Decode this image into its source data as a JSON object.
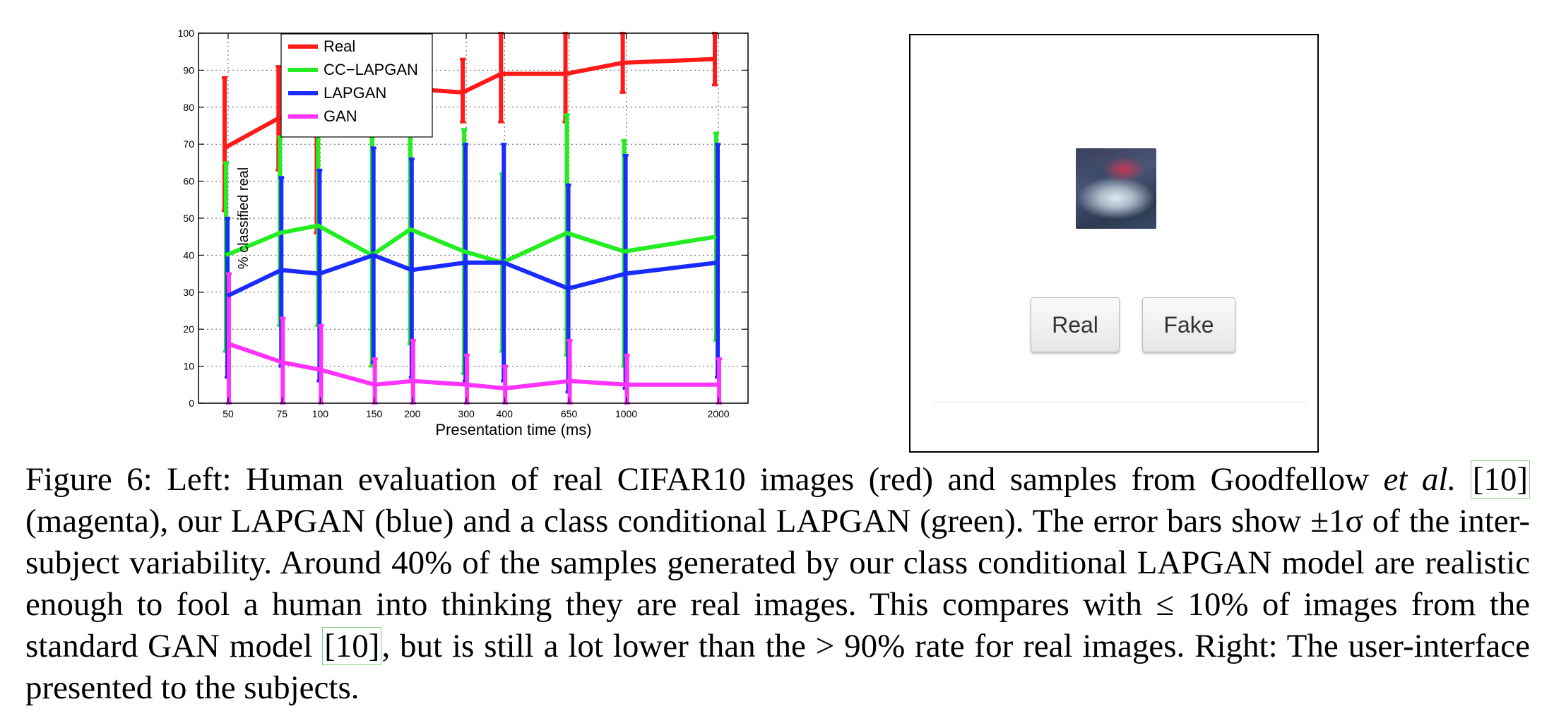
{
  "chart_data": {
    "type": "line",
    "xlabel": "Presentation time (ms)",
    "ylabel": "% classified real",
    "ylim": [
      0,
      100
    ],
    "yticks": [
      0,
      10,
      20,
      30,
      40,
      50,
      60,
      70,
      80,
      90,
      100
    ],
    "x_scale": "log",
    "x": [
      50,
      75,
      100,
      150,
      200,
      300,
      400,
      650,
      1000,
      2000
    ],
    "grid": true,
    "legend_position": "top-left",
    "series": [
      {
        "name": "Real",
        "color": "#ff1a1a",
        "values": [
          69,
          77,
          79,
          87,
          85,
          84,
          89,
          89,
          92,
          93
        ],
        "err_low": [
          52,
          63,
          46,
          75,
          73,
          76,
          76,
          76,
          84,
          86
        ],
        "err_high": [
          88,
          91,
          99,
          99,
          97,
          93,
          100,
          100,
          100,
          100
        ]
      },
      {
        "name": "CC−LAPGAN",
        "color": "#22ee22",
        "values": [
          40,
          46,
          48,
          40,
          47,
          41,
          38,
          46,
          41,
          45
        ],
        "err_low": [
          14,
          21,
          21,
          10,
          16,
          8,
          14,
          13,
          10,
          17
        ],
        "err_high": [
          65,
          72,
          75,
          72,
          78,
          74,
          62,
          78,
          71,
          73
        ]
      },
      {
        "name": "LAPGAN",
        "color": "#1a2bff",
        "values": [
          29,
          36,
          35,
          40,
          36,
          38,
          38,
          31,
          35,
          38
        ],
        "err_low": [
          7,
          10,
          6,
          11,
          7,
          6,
          6,
          3,
          4,
          7
        ],
        "err_high": [
          50,
          61,
          63,
          69,
          66,
          70,
          70,
          59,
          67,
          70
        ]
      },
      {
        "name": "GAN",
        "color": "#ff33ff",
        "values": [
          16,
          11,
          9,
          5,
          6,
          5,
          4,
          6,
          5,
          5
        ],
        "err_low": [
          0,
          0,
          0,
          0,
          0,
          0,
          0,
          0,
          0,
          0
        ],
        "err_high": [
          35,
          23,
          21,
          12,
          17,
          13,
          10,
          17,
          13,
          12
        ]
      }
    ]
  },
  "ui": {
    "real_label": "Real",
    "fake_label": "Fake"
  },
  "caption": {
    "p1": "Figure 6: Left: Human evaluation of real CIFAR10 images (red) and samples from Goodfellow ",
    "etal": "et al.",
    "p2": " ",
    "cite1": "[10]",
    "p3": " (magenta), our LAPGAN (blue) and a class conditional LAPGAN (green). The error bars show ±1σ of the inter-subject variability. Around 40% of the samples generated by our class conditional LAPGAN model are realistic enough to fool a human into thinking they are real images. This compares with ≤ 10% of images from the standard GAN model ",
    "cite2": "[10]",
    "p4": ", but is still a lot lower than the > 90% rate for real images. Right: The user-interface presented to the subjects."
  }
}
